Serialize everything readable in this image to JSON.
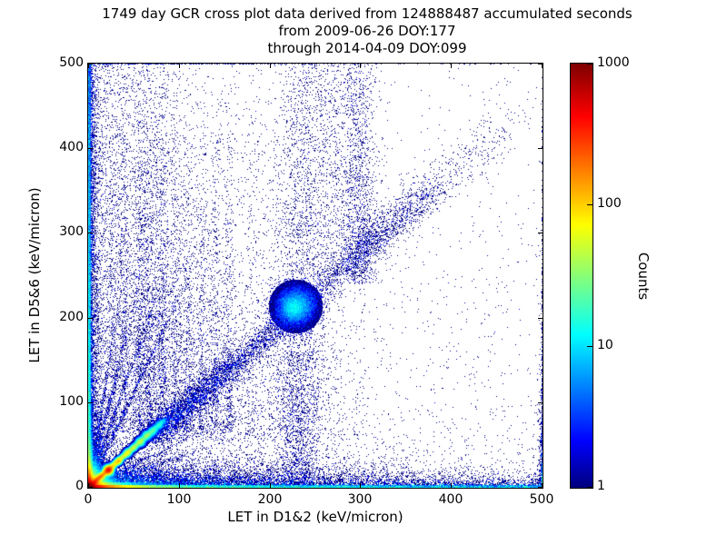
{
  "title": {
    "lines": [
      "1749 day GCR cross plot data derived from 124888487 accumulated seconds",
      "from 2009-06-26 DOY:177",
      "through 2014-04-09 DOY:099"
    ]
  },
  "chart_data": {
    "type": "heatmap",
    "subtype": "2d-histogram-scatter",
    "title": "1749 day GCR cross plot data derived from 124888487 accumulated seconds from 2009-06-26 DOY:177 through 2014-04-09 DOY:099",
    "xlabel": "LET in D1&2 (keV/micron)",
    "ylabel": "LET in D5&6 (keV/micron)",
    "xlim": [
      0,
      500
    ],
    "ylim": [
      0,
      500
    ],
    "xticks": [
      0,
      100,
      200,
      300,
      400,
      500
    ],
    "yticks": [
      0,
      100,
      200,
      300,
      400,
      500
    ],
    "grid": false,
    "colorbar": {
      "label": "Counts",
      "scale": "log",
      "ticks": [
        1,
        10,
        100,
        1000
      ],
      "range": [
        1,
        1000
      ],
      "log_max": 3,
      "colormap": "jet",
      "position": "right"
    },
    "colormap_stops": [
      [
        0.0,
        0.0,
        0.0,
        0.5
      ],
      [
        0.11,
        0.0,
        0.0,
        1.0
      ],
      [
        0.36,
        0.0,
        1.0,
        1.0
      ],
      [
        0.62,
        1.0,
        1.0,
        0.0
      ],
      [
        0.875,
        1.0,
        0.0,
        0.0
      ],
      [
        1.0,
        0.5,
        0.0,
        0.0
      ]
    ],
    "seed": 42,
    "note": "Density model of the LET cross plot: hot (up to ~1000 counts) core at the origin, bright y=x coincidence ridge out to ~85 keV/micron with ion blobs, dense single-count halo along both axes, steep element-track streaks fanning from the origin, a diffuse y~x band from 80-380 with a dense cluster near (228,214), vertical columns near x~233 and x~298 reaching the top, and sparse background elsewhere.",
    "density_features": {
      "fills": [
        {
          "kind": "blob",
          "cx": 0,
          "cy": 0,
          "sx": 6,
          "sy": 6,
          "amp": 1100
        },
        {
          "kind": "hband",
          "y0": 0,
          "y1": 2,
          "amp": 330,
          "xscale": 22
        },
        {
          "kind": "hband",
          "y0": 0,
          "y1": 5,
          "amp": 55,
          "xscale": 20
        },
        {
          "kind": "hband",
          "y0": 0,
          "y1": 2,
          "amp": 8,
          "xscale": 450
        },
        {
          "kind": "hband",
          "y0": 0,
          "y1": 0,
          "amp": 14,
          "xscale": 280
        },
        {
          "kind": "vband",
          "x0": 0,
          "x1": 2,
          "amp": 230,
          "yscale": 11
        },
        {
          "kind": "vband",
          "x0": 0,
          "x1": 4,
          "amp": 45,
          "yscale": 22
        },
        {
          "kind": "vband",
          "x0": 0,
          "x1": 2,
          "amp": 7,
          "yscale": 380
        },
        {
          "kind": "vband",
          "x0": 0,
          "x1": 0,
          "amp": 10,
          "yscale": 220
        },
        {
          "kind": "ridge",
          "t0": 0,
          "t1": 85,
          "slope": 0.95,
          "sigma": 1.8,
          "amp": 450,
          "tscale": 20
        },
        {
          "kind": "gblob",
          "cx": 22,
          "cy": 20.5,
          "sigma": 2.6,
          "amp": 300
        },
        {
          "kind": "gblob",
          "cx": 33,
          "cy": 31,
          "sigma": 2.2,
          "amp": 55
        },
        {
          "kind": "gblob",
          "cx": 43,
          "cy": 41,
          "sigma": 2.6,
          "amp": 33
        },
        {
          "kind": "gblob",
          "cx": 50,
          "cy": 47.5,
          "sigma": 2.4,
          "amp": 22
        },
        {
          "kind": "gblob",
          "cx": 57,
          "cy": 54,
          "sigma": 3.0,
          "amp": 28
        },
        {
          "kind": "gblob",
          "cx": 64,
          "cy": 61,
          "sigma": 3.0,
          "amp": 22
        },
        {
          "kind": "gblob",
          "cx": 71,
          "cy": 67,
          "sigma": 3.0,
          "amp": 14
        },
        {
          "kind": "gblob",
          "cx": 78,
          "cy": 74,
          "sigma": 3.0,
          "amp": 8
        },
        {
          "kind": "gblob",
          "cx": 228,
          "cy": 214,
          "sigma": 14,
          "amp": 5
        },
        {
          "kind": "gblob",
          "cx": 226,
          "cy": 212,
          "sigma": 6,
          "amp": 4
        }
      ],
      "scatters": [
        {
          "kind": "xy",
          "n": 4000,
          "w": 1,
          "x": {
            "d": "e",
            "s": 190
          },
          "y": {
            "d": "e",
            "s": 190
          }
        },
        {
          "kind": "xy",
          "n": 700,
          "w": 1,
          "x": {
            "d": "u",
            "a": 0,
            "b": 500
          },
          "y": {
            "d": "u",
            "a": 0,
            "b": 500
          }
        },
        {
          "kind": "xy",
          "n": 5500,
          "w": 1,
          "x": {
            "d": "e",
            "s": 3.5
          },
          "y": {
            "d": "e",
            "s": 600,
            "max": 500
          }
        },
        {
          "kind": "xy",
          "n": 1800,
          "w": 2,
          "x": {
            "d": "e",
            "s": 1.3
          },
          "y": {
            "d": "e",
            "s": 350,
            "max": 500
          }
        },
        {
          "kind": "xy",
          "n": 8000,
          "w": 1,
          "x": {
            "d": "e",
            "s": 160
          },
          "y": {
            "d": "e",
            "s": 12
          }
        },
        {
          "kind": "xy",
          "n": 2600,
          "w": 1,
          "x": {
            "d": "u",
            "a": 0,
            "b": 500
          },
          "y": {
            "d": "e",
            "s": 5.5
          }
        },
        {
          "kind": "xy",
          "n": 1500,
          "w": 2,
          "x": {
            "d": "e",
            "s": 60
          },
          "y": {
            "d": "e",
            "s": 6
          }
        },
        {
          "kind": "xy",
          "n": 900,
          "w": 7,
          "x": {
            "d": "u",
            "a": 0,
            "b": 500
          },
          "y": {
            "d": "e",
            "s": 1.4
          }
        },
        {
          "kind": "liney",
          "s": 6.5,
          "n": 700,
          "w": 1,
          "t": {
            "d": "e",
            "s": 75,
            "max": 235
          },
          "j": 1.3
        },
        {
          "kind": "liney",
          "s": 4.3,
          "n": 700,
          "w": 1,
          "t": {
            "d": "e",
            "s": 75,
            "max": 235
          },
          "j": 1.3
        },
        {
          "kind": "liney",
          "s": 3.0,
          "n": 700,
          "w": 1,
          "t": {
            "d": "e",
            "s": 75,
            "max": 235
          },
          "j": 1.3
        },
        {
          "kind": "liney",
          "s": 2.25,
          "n": 700,
          "w": 1,
          "t": {
            "d": "e",
            "s": 75,
            "max": 235
          },
          "j": 1.3
        },
        {
          "kind": "linex",
          "s": 2.8,
          "n": 350,
          "w": 1,
          "t": {
            "d": "e",
            "s": 60,
            "max": 160
          },
          "j": 1.2
        },
        {
          "kind": "linex",
          "s": 1.9,
          "n": 350,
          "w": 1,
          "t": {
            "d": "e",
            "s": 60,
            "max": 160
          },
          "j": 1.2
        },
        {
          "kind": "diag",
          "n": 1600,
          "w": 1,
          "t": {
            "d": "e",
            "s": 45,
            "max": 90
          },
          "slope": 0.95,
          "yoff": 0,
          "jx": 2.2,
          "jy": 2.2
        },
        {
          "kind": "diag",
          "n": 5200,
          "w": 1,
          "t": {
            "d": "e",
            "s": 150,
            "max": 310,
            "off": 70
          },
          "slope": 0.94,
          "yoff": -6,
          "jx": 8,
          "jy": 8
        },
        {
          "kind": "xy",
          "n": 2600,
          "w": 1,
          "x": {
            "d": "g",
            "m": 228,
            "s": 12
          },
          "y": {
            "d": "g",
            "m": 214,
            "s": 12
          }
        },
        {
          "kind": "diag",
          "n": 900,
          "w": 1,
          "t": {
            "d": "e",
            "s": 90,
            "max": 170,
            "off": 300
          },
          "slope": 0.93,
          "yoff": 0,
          "jx": 14,
          "jy": 14
        },
        {
          "kind": "xy",
          "n": 1200,
          "w": 1,
          "x": {
            "d": "g",
            "m": 298,
            "s": 10
          },
          "y": {
            "d": "e",
            "s": 210,
            "max": 260,
            "off": 240
          }
        },
        {
          "kind": "xy",
          "n": 1100,
          "w": 1,
          "x": {
            "d": "g",
            "m": 268,
            "s": 26
          },
          "y": {
            "d": "u",
            "a": 250,
            "b": 500
          }
        },
        {
          "kind": "xy",
          "n": 2600,
          "w": 1,
          "x": {
            "d": "g",
            "m": 233,
            "s": 14
          },
          "y": {
            "d": "e",
            "s": 300,
            "max": 500
          }
        },
        {
          "kind": "xy",
          "n": 4200,
          "w": 1,
          "x": {
            "d": "e",
            "s": 110,
            "off": 55,
            "max": 250
          },
          "y": {
            "d": "e",
            "s": 190,
            "off": 55,
            "max": 445
          }
        },
        {
          "kind": "vlines",
          "centers": [
            27,
            40,
            54,
            68,
            82,
            96,
            110,
            125,
            140,
            155
          ],
          "sx": 3,
          "n": 300,
          "w": 1,
          "y": {
            "d": "e",
            "s": 170,
            "off": 65,
            "max": 355
          }
        },
        {
          "kind": "vlines",
          "centers": [
            38,
            58,
            78
          ],
          "sx": 5,
          "n": 330,
          "w": 1,
          "y": {
            "d": "e",
            "s": 250,
            "off": 130,
            "max": 370
          }
        },
        {
          "kind": "xy",
          "n": 2200,
          "w": 1,
          "x": {
            "d": "e",
            "s": 45,
            "off": 6,
            "max": 100
          },
          "y": {
            "d": "u",
            "a": 30,
            "b": 500
          }
        },
        {
          "kind": "xy",
          "n": 260,
          "w": 1,
          "x": {
            "d": "e",
            "s": 2,
            "max": 30,
            "flip": 500
          },
          "y": {
            "d": "e",
            "s": 60
          }
        }
      ]
    }
  }
}
